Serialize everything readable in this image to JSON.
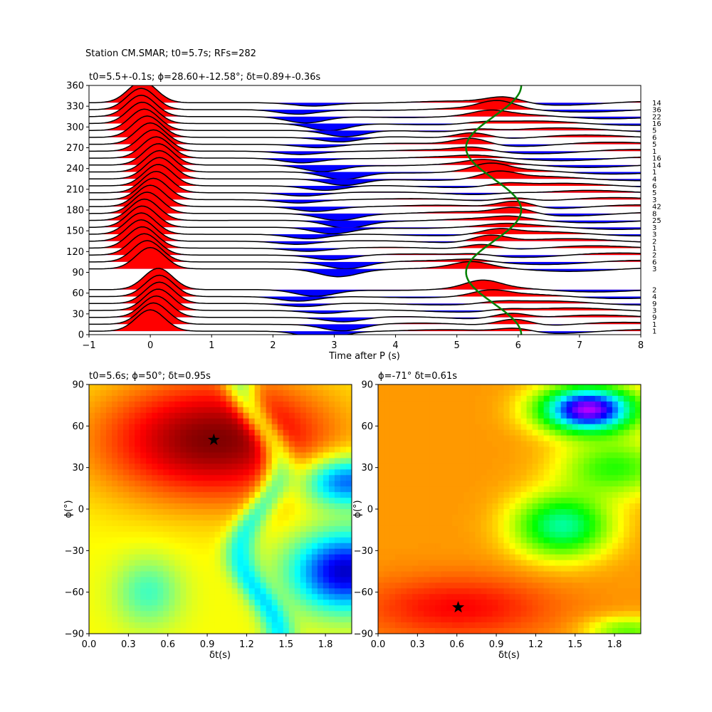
{
  "figure": {
    "suptitle": "Station CM.SMAR; t0=5.7s; RFs=282"
  },
  "chart_data": [
    {
      "type": "line",
      "kind": "receiver-function-wiggle-stack",
      "title": "t0=5.5+-0.1s; ϕ=28.60+-12.58°; δt=0.89+-0.36s",
      "xlabel": "Time after P (s)",
      "ylabel": "",
      "xlim": [
        -1,
        8
      ],
      "ylim": [
        0,
        360
      ],
      "xticks": [
        "−1",
        "0",
        "1",
        "2",
        "3",
        "4",
        "5",
        "6",
        "7",
        "8"
      ],
      "yticks": [
        "0",
        "30",
        "60",
        "90",
        "120",
        "150",
        "180",
        "210",
        "240",
        "270",
        "300",
        "330",
        "360"
      ],
      "positive_fill": "#ff0000",
      "negative_fill": "#0000ff",
      "trace_color": "#000000",
      "baz_bins": [
        0,
        10,
        20,
        30,
        40,
        50,
        60,
        90,
        100,
        110,
        120,
        130,
        140,
        150,
        160,
        170,
        180,
        190,
        200,
        210,
        220,
        230,
        240,
        250,
        260,
        270,
        280,
        290,
        300,
        310,
        320,
        330
      ],
      "rf_counts": [
        "1",
        "1",
        "9",
        "3",
        "9",
        "4",
        "2",
        "3",
        "6",
        "2",
        "1",
        "2",
        "3",
        "3",
        "25",
        "8",
        "42",
        "3",
        "5",
        "6",
        "4",
        "1",
        "14",
        "16",
        "1",
        "5",
        "6",
        "5",
        "16",
        "22",
        "36",
        "14"
      ],
      "pulses": [
        {
          "t": 0.0,
          "amp": 1.0,
          "w": 0.33
        },
        {
          "t": 5.2,
          "amp": 0.35,
          "w": 0.4
        },
        {
          "t": 2.8,
          "amp": -0.35,
          "w": 0.45
        }
      ],
      "fitted_curve": {
        "color": "#008000",
        "mean": 5.6,
        "amplitude": 0.45,
        "phase_deg": 0
      }
    },
    {
      "type": "heatmap",
      "title": "t0=5.6s; ϕ=50°; δt=0.95s",
      "xlabel": "δt(s)",
      "ylabel": "ϕ(°)",
      "xlim": [
        0,
        2
      ],
      "ylim": [
        -90,
        90
      ],
      "xticks": [
        "0.0",
        "0.3",
        "0.6",
        "0.9",
        "1.2",
        "1.5",
        "1.8"
      ],
      "yticks": [
        "−90",
        "−60",
        "−30",
        "0",
        "30",
        "60",
        "90"
      ],
      "colormap": "jet",
      "best_fit": {
        "dt": 0.95,
        "phi": 50,
        "marker": "star"
      }
    },
    {
      "type": "heatmap",
      "title": "ϕ=-71° δt=0.61s",
      "xlabel": "δt(s)",
      "ylabel": "ϕ(°)",
      "xlim": [
        0,
        2
      ],
      "ylim": [
        -90,
        90
      ],
      "xticks": [
        "0.0",
        "0.3",
        "0.6",
        "0.9",
        "1.2",
        "1.5",
        "1.8"
      ],
      "yticks": [
        "−90",
        "−60",
        "−30",
        "0",
        "30",
        "60",
        "90"
      ],
      "colormap": "gist_rainbow",
      "best_fit": {
        "dt": 0.61,
        "phi": -71,
        "marker": "star"
      }
    }
  ]
}
